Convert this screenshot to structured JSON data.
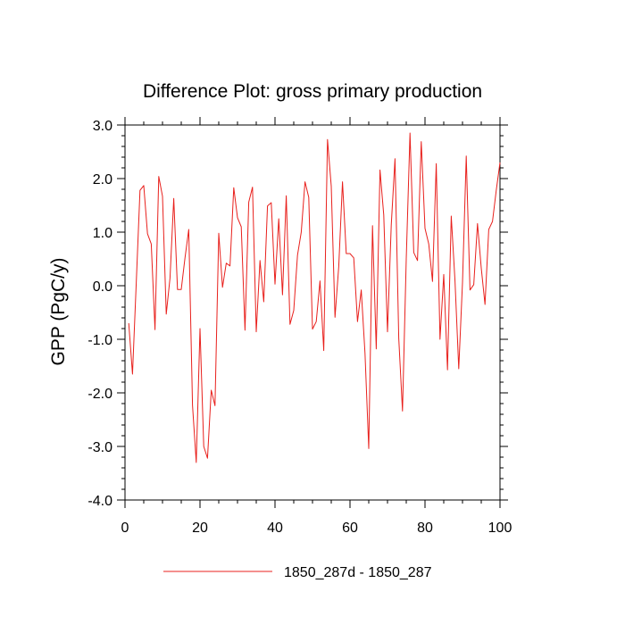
{
  "chart_data": {
    "type": "line",
    "title": "Difference Plot: gross primary production",
    "xlabel": "",
    "ylabel": "GPP  (PgC/y)",
    "xlim": [
      0,
      100
    ],
    "ylim": [
      -4.0,
      3.0
    ],
    "x_ticks": [
      0,
      20,
      40,
      60,
      80,
      100
    ],
    "x_tick_labels": [
      "0",
      "20",
      "40",
      "60",
      "80",
      "100"
    ],
    "y_ticks": [
      3.0,
      2.0,
      1.0,
      0.0,
      -1.0,
      -2.0,
      -3.0,
      -4.0
    ],
    "y_tick_labels": [
      "3.0",
      "2.0",
      "1.0",
      "0.0",
      "-1.0",
      "-2.0",
      "-3.0",
      "-4.0"
    ],
    "legend_position": "bottom",
    "series": [
      {
        "name": "1850_287d - 1850_287",
        "color": "#e8201c",
        "x": [
          1,
          2,
          3,
          4,
          5,
          6,
          7,
          8,
          9,
          10,
          11,
          12,
          13,
          14,
          15,
          16,
          17,
          18,
          19,
          20,
          21,
          22,
          23,
          24,
          25,
          26,
          27,
          28,
          29,
          30,
          31,
          32,
          33,
          34,
          35,
          36,
          37,
          38,
          39,
          40,
          41,
          42,
          43,
          44,
          45,
          46,
          47,
          48,
          49,
          50,
          51,
          52,
          53,
          54,
          55,
          56,
          57,
          58,
          59,
          60,
          61,
          62,
          63,
          64,
          65,
          66,
          67,
          68,
          69,
          70,
          71,
          72,
          73,
          74,
          75,
          76,
          77,
          78,
          79,
          80,
          81,
          82,
          83,
          84,
          85,
          86,
          87,
          88,
          89,
          90,
          91,
          92,
          93,
          94,
          95,
          96,
          97,
          98,
          99,
          100
        ],
        "values": [
          -0.7,
          -1.65,
          0.05,
          1.78,
          1.87,
          0.97,
          0.78,
          -0.82,
          2.04,
          1.67,
          -0.53,
          0.14,
          1.63,
          -0.07,
          -0.07,
          0.52,
          1.05,
          -2.23,
          -3.3,
          -0.8,
          -3.0,
          -3.22,
          -1.95,
          -2.24,
          0.98,
          -0.03,
          0.42,
          0.37,
          1.83,
          1.27,
          1.1,
          -0.83,
          1.56,
          1.84,
          -0.86,
          0.47,
          -0.3,
          1.49,
          1.55,
          0.03,
          1.25,
          -0.17,
          1.68,
          -0.72,
          -0.46,
          0.57,
          1.0,
          1.94,
          1.65,
          -0.81,
          -0.67,
          0.09,
          -1.21,
          2.73,
          1.86,
          -0.59,
          0.36,
          1.94,
          0.6,
          0.6,
          0.52,
          -0.67,
          -0.08,
          -1.26,
          -3.04,
          1.12,
          -1.18,
          2.16,
          1.32,
          -0.86,
          1.13,
          2.37,
          -0.98,
          -2.34,
          0.5,
          2.85,
          0.62,
          0.47,
          2.69,
          1.07,
          0.78,
          0.08,
          2.28,
          -1.0,
          0.21,
          -1.57,
          1.3,
          0.09,
          -1.55,
          0.06,
          2.42,
          -0.08,
          0.02,
          1.16,
          0.33,
          -0.35,
          1.05,
          1.2,
          1.78,
          2.3
        ]
      }
    ]
  }
}
